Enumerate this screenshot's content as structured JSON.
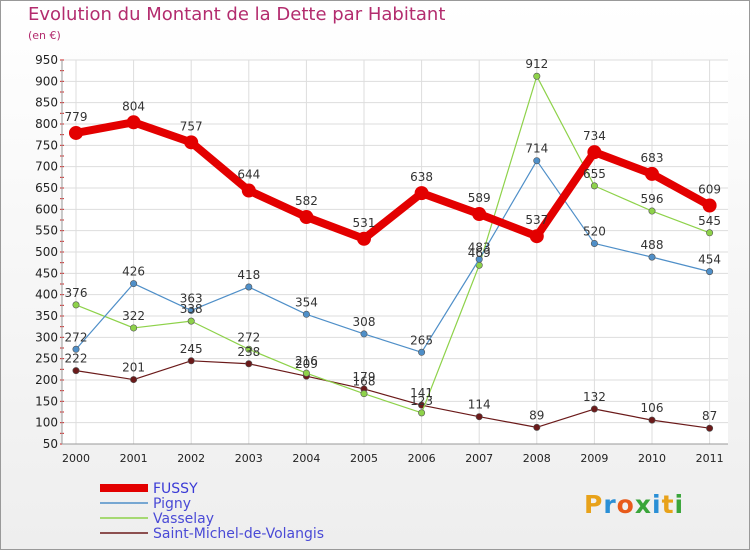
{
  "header": {
    "title": "Evolution du Montant de la Dette par Habitant",
    "unit": "(en €)"
  },
  "brand": {
    "text": "Proxiti"
  },
  "chart_data": {
    "type": "line",
    "title": "Evolution du Montant de la Dette par Habitant",
    "subtitle": "(en €)",
    "xlabel": "",
    "ylabel": "",
    "x": [
      "2000",
      "2001",
      "2002",
      "2003",
      "2004",
      "2005",
      "2006",
      "2007",
      "2008",
      "2009",
      "2010",
      "2011"
    ],
    "ylim": [
      50,
      950
    ],
    "yticks": [
      50,
      100,
      150,
      200,
      250,
      300,
      350,
      400,
      450,
      500,
      550,
      600,
      650,
      700,
      750,
      800,
      850,
      900,
      950
    ],
    "grid": true,
    "legend_position": "bottom-left",
    "series": [
      {
        "name": "FUSSY",
        "color": "#e30000",
        "values": [
          779,
          804,
          757,
          644,
          582,
          531,
          638,
          589,
          537,
          734,
          683,
          609
        ],
        "labels": [
          "779",
          "804",
          "757",
          "644",
          "582",
          "531",
          "638",
          "589",
          "537",
          "734",
          "683",
          "609"
        ]
      },
      {
        "name": "Pigny",
        "color": "#4f8fc8",
        "values": [
          272,
          426,
          363,
          418,
          354,
          308,
          265,
          483,
          714,
          520,
          488,
          454
        ],
        "labels": [
          "272",
          "426",
          "363",
          "418",
          "354",
          "308",
          "265",
          "483",
          "714",
          "520",
          "488",
          "454"
        ]
      },
      {
        "name": "Vasselay",
        "color": "#8ed24a",
        "values": [
          376,
          322,
          338,
          272,
          216,
          168,
          123,
          469,
          912,
          655,
          596,
          545
        ],
        "labels": [
          "376",
          "322",
          "338",
          "272",
          "216",
          "168",
          "123",
          "469",
          "912",
          "655",
          "596",
          "545"
        ]
      },
      {
        "name": "Saint-Michel-de-Volangis",
        "color": "#6b1a1a",
        "values": [
          222,
          201,
          245,
          238,
          209,
          179,
          141,
          114,
          89,
          132,
          106,
          87
        ],
        "labels": [
          "222",
          "201",
          "245",
          "238",
          "209",
          "179",
          "141",
          "114",
          "89",
          "132",
          "106",
          "87"
        ]
      }
    ]
  }
}
